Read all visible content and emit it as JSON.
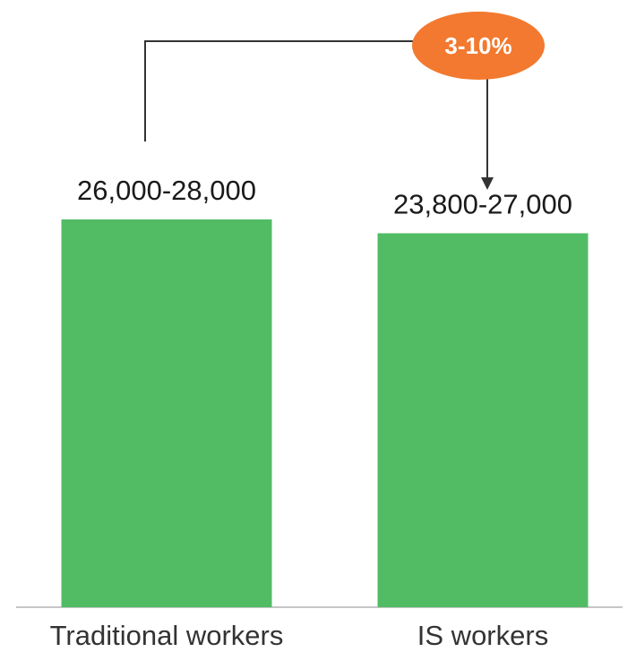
{
  "chart_data": {
    "type": "bar",
    "categories": [
      "Traditional workers",
      "IS workers"
    ],
    "series": [
      {
        "values": [
          28000,
          27000
        ],
        "value_labels": [
          "26,000-28,000",
          "23,800-27,000"
        ]
      }
    ],
    "annotation": {
      "text": "3-10%",
      "from": "Traditional workers",
      "to": "IS workers"
    },
    "title": "",
    "xlabel": "",
    "ylabel": "",
    "grid": false,
    "colors": {
      "bar": "#52bc65",
      "badge": "#f2792f",
      "connector": "#333333",
      "axis": "#b3b3b3"
    }
  }
}
